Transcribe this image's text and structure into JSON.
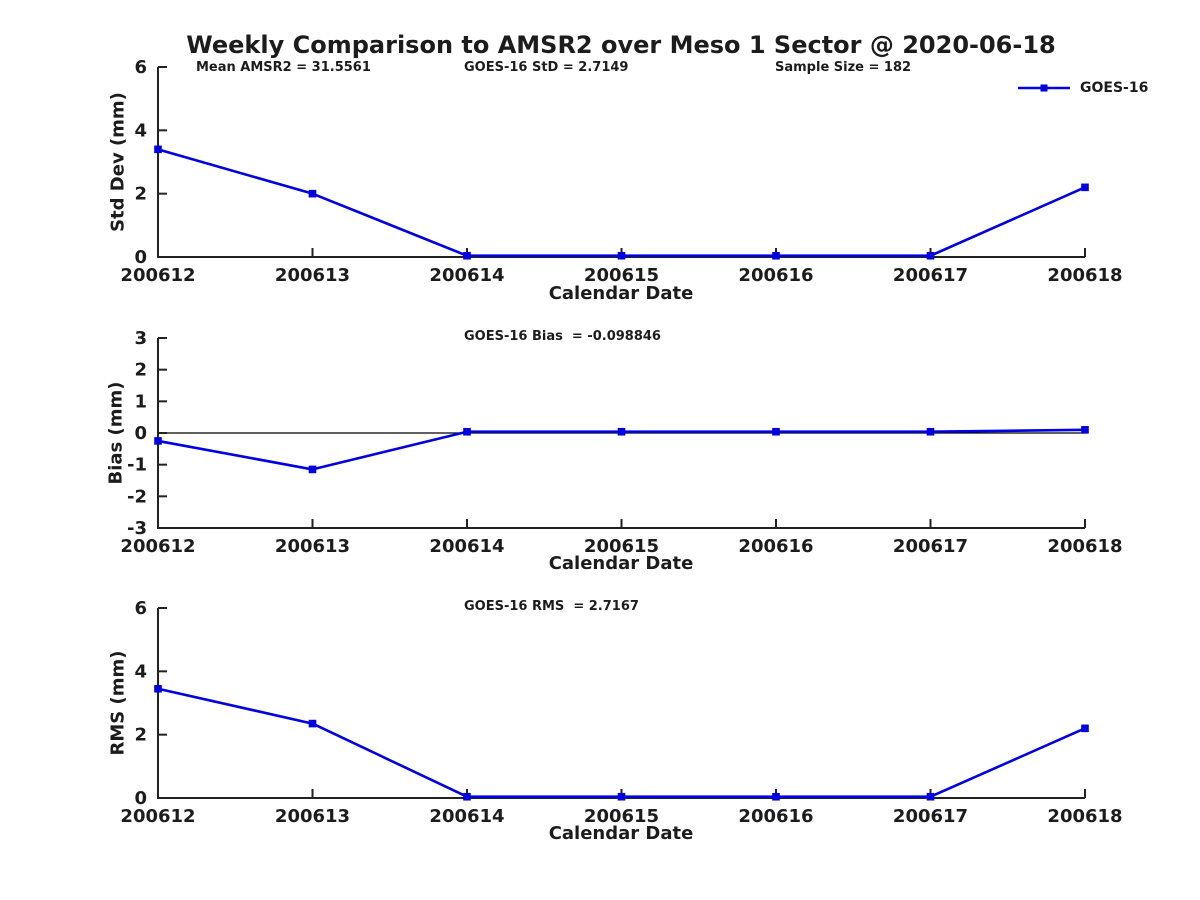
{
  "title": "Weekly Comparison to AMSR2 over Meso 1 Sector @ 2020-06-18",
  "legend": {
    "label": "GOES-16"
  },
  "colors": {
    "series": "#0000e0",
    "axis": "#222222",
    "text": "#1c1c1c",
    "zero_line": "#000000",
    "background": "#ffffff"
  },
  "chart_data": [
    {
      "type": "line",
      "id": "std-dev",
      "annotations": [
        "Mean AMSR2 = 31.5561",
        "GOES-16 StD = 2.7149",
        "Sample Size = 182"
      ],
      "categories": [
        "200612",
        "200613",
        "200614",
        "200615",
        "200616",
        "200617",
        "200618"
      ],
      "series": [
        {
          "name": "GOES-16",
          "values": [
            3.4,
            2.0,
            0.04,
            0.04,
            0.04,
            0.04,
            2.2
          ]
        }
      ],
      "xlabel": "Calendar Date",
      "ylabel": "Std Dev (mm)",
      "ylim": [
        0,
        6
      ],
      "yticks": [
        0,
        2,
        4,
        6
      ],
      "zero_line": false,
      "grid": false,
      "legend_position": "top-right"
    },
    {
      "type": "line",
      "id": "bias",
      "annotations": [
        "GOES-16 Bias  = -0.098846"
      ],
      "categories": [
        "200612",
        "200613",
        "200614",
        "200615",
        "200616",
        "200617",
        "200618"
      ],
      "series": [
        {
          "name": "GOES-16",
          "values": [
            -0.25,
            -1.15,
            0.04,
            0.04,
            0.04,
            0.04,
            0.1
          ]
        }
      ],
      "xlabel": "Calendar Date",
      "ylabel": "Bias (mm)",
      "ylim": [
        -3,
        3
      ],
      "yticks": [
        -3,
        -2,
        -1,
        0,
        1,
        2,
        3
      ],
      "zero_line": true,
      "grid": false
    },
    {
      "type": "line",
      "id": "rms",
      "annotations": [
        "GOES-16 RMS  = 2.7167"
      ],
      "categories": [
        "200612",
        "200613",
        "200614",
        "200615",
        "200616",
        "200617",
        "200618"
      ],
      "series": [
        {
          "name": "GOES-16",
          "values": [
            3.45,
            2.35,
            0.04,
            0.04,
            0.04,
            0.04,
            2.2
          ]
        }
      ],
      "xlabel": "Calendar Date",
      "ylabel": "RMS (mm)",
      "ylim": [
        0,
        6
      ],
      "yticks": [
        0,
        2,
        4,
        6
      ],
      "zero_line": false,
      "grid": false
    }
  ]
}
